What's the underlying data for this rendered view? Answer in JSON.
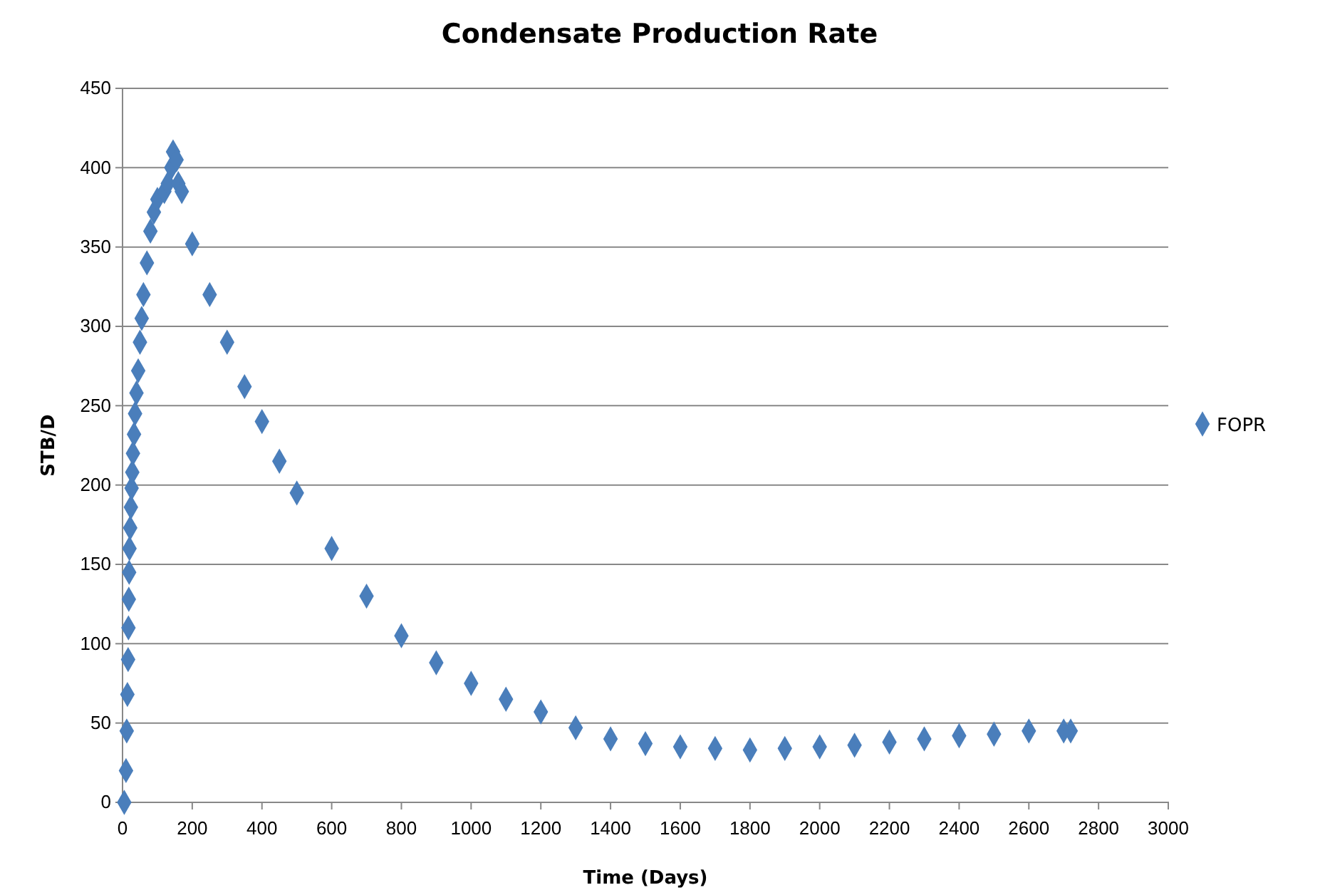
{
  "chart_data": {
    "type": "scatter",
    "title": "Condensate Production Rate",
    "xlabel": "Time (Days)",
    "ylabel": "STB/D",
    "xlim": [
      0,
      3000
    ],
    "xticks": [
      0,
      200,
      400,
      600,
      800,
      1000,
      1200,
      1400,
      1600,
      1800,
      2000,
      2200,
      2400,
      2600,
      2800,
      3000
    ],
    "ylim": [
      0,
      450
    ],
    "yticks": [
      0,
      50,
      100,
      150,
      200,
      250,
      300,
      350,
      400,
      450
    ],
    "grid": "y",
    "legend": "right",
    "marker": "diamond",
    "series": [
      {
        "name": "FOPR",
        "color": "#4a7ebb",
        "x": [
          5,
          10,
          12,
          14,
          16,
          17,
          18,
          19,
          20,
          22,
          24,
          26,
          28,
          30,
          33,
          36,
          40,
          45,
          50,
          55,
          60,
          70,
          80,
          90,
          100,
          120,
          130,
          140,
          145,
          155,
          160,
          170,
          200,
          250,
          300,
          350,
          400,
          450,
          500,
          600,
          700,
          800,
          900,
          1000,
          1100,
          1200,
          1300,
          1400,
          1500,
          1600,
          1700,
          1800,
          1900,
          2000,
          2100,
          2200,
          2300,
          2400,
          2500,
          2600,
          2700,
          2720
        ],
        "values": [
          0,
          20,
          45,
          68,
          90,
          110,
          128,
          145,
          160,
          173,
          186,
          198,
          208,
          220,
          232,
          245,
          258,
          272,
          290,
          305,
          320,
          340,
          360,
          372,
          380,
          385,
          390,
          400,
          410,
          405,
          390,
          385,
          352,
          320,
          290,
          262,
          240,
          215,
          195,
          160,
          130,
          105,
          88,
          75,
          65,
          57,
          47,
          40,
          37,
          35,
          34,
          33,
          34,
          35,
          36,
          38,
          40,
          42,
          43,
          45,
          45,
          45
        ]
      }
    ]
  }
}
